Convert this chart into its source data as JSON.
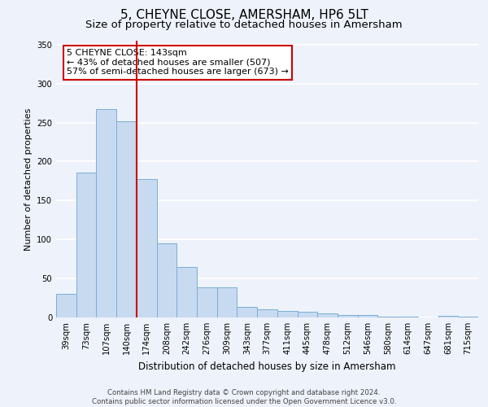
{
  "title": "5, CHEYNE CLOSE, AMERSHAM, HP6 5LT",
  "subtitle": "Size of property relative to detached houses in Amersham",
  "bar_labels": [
    "39sqm",
    "73sqm",
    "107sqm",
    "140sqm",
    "174sqm",
    "208sqm",
    "242sqm",
    "276sqm",
    "309sqm",
    "343sqm",
    "377sqm",
    "411sqm",
    "445sqm",
    "478sqm",
    "512sqm",
    "546sqm",
    "580sqm",
    "614sqm",
    "647sqm",
    "681sqm",
    "715sqm"
  ],
  "bar_values": [
    30,
    186,
    267,
    252,
    177,
    95,
    65,
    39,
    39,
    14,
    10,
    8,
    7,
    5,
    3,
    3,
    1,
    1,
    0,
    2,
    1
  ],
  "bar_color": "#c8daf0",
  "bar_edge_color": "#7aaed6",
  "vline_color": "#cc0000",
  "annotation_text": "5 CHEYNE CLOSE: 143sqm\n← 43% of detached houses are smaller (507)\n57% of semi-detached houses are larger (673) →",
  "annotation_box_color": "#ffffff",
  "annotation_box_edge_color": "#cc0000",
  "xlabel": "Distribution of detached houses by size in Amersham",
  "ylabel": "Number of detached properties",
  "ylim": [
    0,
    355
  ],
  "yticks": [
    0,
    50,
    100,
    150,
    200,
    250,
    300,
    350
  ],
  "footer_line1": "Contains HM Land Registry data © Crown copyright and database right 2024.",
  "footer_line2": "Contains public sector information licensed under the Open Government Licence v3.0.",
  "bg_color": "#eef2fa",
  "grid_color": "#ffffff",
  "title_fontsize": 11,
  "subtitle_fontsize": 9.5
}
